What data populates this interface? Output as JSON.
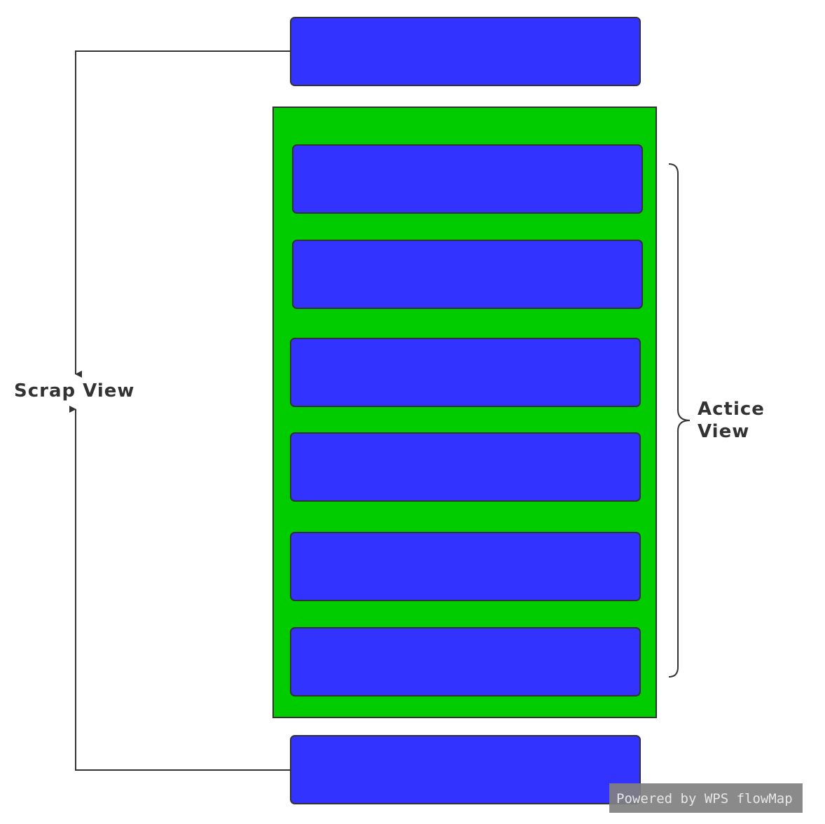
{
  "diagram": {
    "scrap_label": "Scrap View",
    "active_label_line1": "Actice",
    "active_label_line2": "View",
    "watermark": "Powered by WPS flowMap",
    "recycled_items": [
      "scrap-top",
      "scrap-bottom"
    ],
    "active_items": [
      "item-1",
      "item-2",
      "item-3",
      "item-4",
      "item-5",
      "item-6"
    ]
  },
  "colors": {
    "item_fill": "#3333ff",
    "container_fill": "#00cc00",
    "stroke": "#333333",
    "watermark_bg": "#808080"
  }
}
